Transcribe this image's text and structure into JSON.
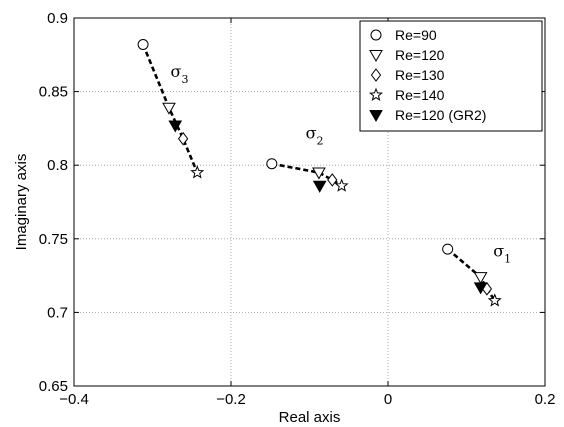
{
  "chart_data": {
    "type": "scatter",
    "title": "",
    "xlabel": "Real axis",
    "ylabel": "Imaginary axis",
    "xlim": [
      -0.4,
      0.2
    ],
    "ylim": [
      0.65,
      0.9
    ],
    "x_ticks": [
      -0.4,
      -0.2,
      0,
      0.2
    ],
    "x_tick_labels": [
      "−0.4",
      "−0.2",
      "0",
      "0.2"
    ],
    "y_ticks": [
      0.65,
      0.7,
      0.75,
      0.8,
      0.85,
      0.9
    ],
    "y_tick_labels": [
      "0.65",
      "0.7",
      "0.75",
      "0.8",
      "0.85",
      "0.9"
    ],
    "grid": true,
    "legend_position": "top-right",
    "series": [
      {
        "name": "Re=90",
        "marker": "circle",
        "filled": false,
        "points": [
          [
            -0.312,
            0.882
          ],
          [
            -0.148,
            0.801
          ],
          [
            0.076,
            0.743
          ]
        ]
      },
      {
        "name": "Re=120",
        "marker": "triangle-down",
        "filled": false,
        "points": [
          [
            -0.279,
            0.839
          ],
          [
            -0.088,
            0.795
          ],
          [
            0.118,
            0.724
          ]
        ]
      },
      {
        "name": "Re=130",
        "marker": "diamond",
        "filled": false,
        "points": [
          [
            -0.261,
            0.818
          ],
          [
            -0.071,
            0.79
          ],
          [
            0.126,
            0.716
          ]
        ]
      },
      {
        "name": "Re=140",
        "marker": "star",
        "filled": false,
        "points": [
          [
            -0.243,
            0.795
          ],
          [
            -0.059,
            0.786
          ],
          [
            0.136,
            0.708
          ]
        ]
      },
      {
        "name": "Re=120 (GR2)",
        "marker": "triangle-down",
        "filled": true,
        "points": [
          [
            -0.271,
            0.827
          ],
          [
            -0.087,
            0.786
          ],
          [
            0.118,
            0.717
          ]
        ]
      }
    ],
    "curves": [
      {
        "label_base": "σ",
        "label_sub": "3",
        "label_pos": [
          -0.277,
          0.86
        ],
        "points": [
          [
            -0.312,
            0.882
          ],
          [
            -0.279,
            0.839
          ],
          [
            -0.261,
            0.818
          ],
          [
            -0.243,
            0.795
          ]
        ]
      },
      {
        "label_base": "σ",
        "label_sub": "2",
        "label_pos": [
          -0.105,
          0.818
        ],
        "points": [
          [
            -0.148,
            0.801
          ],
          [
            -0.088,
            0.795
          ],
          [
            -0.071,
            0.79
          ],
          [
            -0.059,
            0.786
          ]
        ]
      },
      {
        "label_base": "σ",
        "label_sub": "1",
        "label_pos": [
          0.134,
          0.738
        ],
        "points": [
          [
            0.076,
            0.743
          ],
          [
            0.118,
            0.724
          ],
          [
            0.126,
            0.716
          ],
          [
            0.136,
            0.708
          ]
        ]
      }
    ]
  }
}
